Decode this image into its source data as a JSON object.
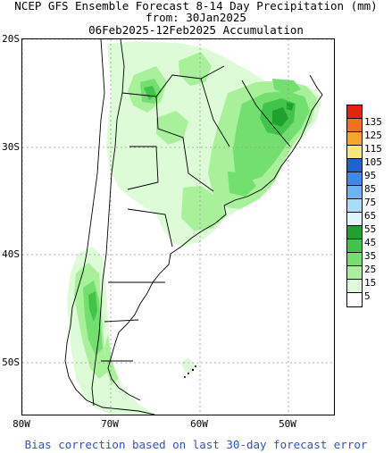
{
  "title": {
    "line1": "NCEP GFS Ensemble Forecast 8-14 Day Precipitation (mm)",
    "line2": "from: 30Jan2025",
    "line3": "06Feb2025-12Feb2025 Accumulation"
  },
  "axes": {
    "lat_labels": [
      "20S",
      "30S",
      "40S",
      "50S"
    ],
    "lon_labels": [
      "80W",
      "70W",
      "60W",
      "50W"
    ]
  },
  "legend": {
    "levels": [
      {
        "label": "135",
        "color": "#e8220f"
      },
      {
        "label": "125",
        "color": "#f2701f"
      },
      {
        "label": "115",
        "color": "#f7a52e"
      },
      {
        "label": "105",
        "color": "#f7e678"
      },
      {
        "label": "95",
        "color": "#1f63d1"
      },
      {
        "label": "85",
        "color": "#3d89e8"
      },
      {
        "label": "75",
        "color": "#6db3f2"
      },
      {
        "label": "65",
        "color": "#a9dcf7"
      },
      {
        "label": "55",
        "color": "#dcf7fb"
      },
      {
        "label": "45",
        "color": "#1ca32d"
      },
      {
        "label": "35",
        "color": "#41c44a"
      },
      {
        "label": "25",
        "color": "#73df6e"
      },
      {
        "label": "15",
        "color": "#a8f09a"
      },
      {
        "label": "5",
        "color": "#ddfbd6"
      },
      {
        "label": "",
        "color": "#ffffff"
      }
    ]
  },
  "footer": {
    "text": "Bias correction based on last 30-day forecast error",
    "color": "#2e4fd6"
  }
}
